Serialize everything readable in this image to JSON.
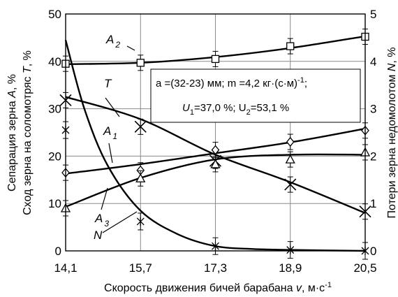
{
  "chart_data": {
    "type": "line",
    "x": [
      14.1,
      15.7,
      17.3,
      18.9,
      20.5
    ],
    "x_tick_labels": [
      "14,1",
      "15,7",
      "17,3",
      "18,9",
      "20,5"
    ],
    "xlabel": {
      "text": "Скорость движения бичей барабана ",
      "var": "v",
      "unit": ", м·с",
      "unit_sup": "-1"
    },
    "ylim_left": [
      0,
      50
    ],
    "ylim_right": [
      0,
      5
    ],
    "y_left_ticks": [
      "0",
      "10",
      "20",
      "30",
      "40",
      "50"
    ],
    "y_right_ticks": [
      "0",
      "1",
      "2",
      "3",
      "4",
      "5"
    ],
    "ylabel_left_line1": {
      "text": "Сепарация зерна ",
      "var": "A",
      "unit": ", %"
    },
    "ylabel_left_line2": {
      "text": "Сход зерна на соломотряс ",
      "var": "T",
      "unit": ", %"
    },
    "ylabel_right": {
      "text": "Потери зерна недомолотом ",
      "var": "N",
      "unit": ", %"
    },
    "annotation": {
      "line1": "a =(32-23) мм;  m =4,2 кг·(с·м)",
      "line1_sup": "-1",
      "line1_tail": ";",
      "line2_a": "U",
      "line2_a_sub": "1",
      "line2_b": "=37,0 %; U",
      "line2_b_sub": "2",
      "line2_c": "=53,1 %"
    },
    "series": [
      {
        "name": "A",
        "name_sub": "2",
        "axis": "left",
        "marker": "square",
        "points": [
          [
            14.1,
            39.5
          ],
          [
            15.7,
            39.7
          ],
          [
            17.3,
            40.5
          ],
          [
            18.9,
            43.2
          ],
          [
            20.5,
            45.2
          ]
        ],
        "curve": [
          [
            14.1,
            39.4
          ],
          [
            15.7,
            39.7
          ],
          [
            17.3,
            40.9
          ],
          [
            18.9,
            42.8
          ],
          [
            20.5,
            45.3
          ]
        ]
      },
      {
        "name": "T",
        "name_sub": "",
        "axis": "left",
        "marker": "x",
        "points": [
          [
            14.1,
            31.8
          ],
          [
            15.7,
            26.2
          ],
          [
            17.3,
            19.0
          ],
          [
            18.9,
            14.0
          ],
          [
            20.5,
            8.3
          ]
        ],
        "curve": [
          [
            14.1,
            32.5
          ],
          [
            15.7,
            27.8
          ],
          [
            17.3,
            20.3
          ],
          [
            18.9,
            14.5
          ],
          [
            20.5,
            8.0
          ]
        ]
      },
      {
        "name": "A",
        "name_sub": "1",
        "axis": "left",
        "marker": "diamond",
        "points": [
          [
            14.1,
            16.5
          ],
          [
            15.7,
            17.0
          ],
          [
            17.3,
            21.3
          ],
          [
            18.9,
            23.0
          ],
          [
            20.5,
            25.4
          ]
        ],
        "curve": [
          [
            14.1,
            16.3
          ],
          [
            15.7,
            18.3
          ],
          [
            17.3,
            20.6
          ],
          [
            18.9,
            22.9
          ],
          [
            20.5,
            25.8
          ]
        ]
      },
      {
        "name": "A",
        "name_sub": "3",
        "axis": "left",
        "marker": "triangle",
        "points": [
          [
            14.1,
            9.0
          ],
          [
            15.7,
            15.3
          ],
          [
            17.3,
            18.3
          ],
          [
            18.9,
            19.3
          ],
          [
            20.5,
            20.8
          ]
        ],
        "curve": [
          [
            14.1,
            9.3
          ],
          [
            15.7,
            15.4
          ],
          [
            17.3,
            19.3
          ],
          [
            18.9,
            20.3
          ],
          [
            20.5,
            20.3
          ]
        ]
      },
      {
        "name": "N",
        "name_sub": "",
        "axis": "right",
        "marker": "star",
        "points": [
          [
            14.1,
            2.55
          ],
          [
            15.7,
            0.62
          ],
          [
            17.3,
            0.1
          ],
          [
            18.9,
            0.02
          ],
          [
            20.5,
            0.0
          ]
        ],
        "curve": [
          [
            14.1,
            4.45
          ],
          [
            14.5,
            3.0
          ],
          [
            15.0,
            1.8
          ],
          [
            15.7,
            0.85
          ],
          [
            16.5,
            0.35
          ],
          [
            17.3,
            0.1
          ],
          [
            18.1,
            0.04
          ],
          [
            18.9,
            0.02
          ],
          [
            20.5,
            0.0
          ]
        ]
      }
    ],
    "error_bar_series": [
      "T",
      "A",
      "A",
      "A",
      "A"
    ],
    "grid": true,
    "legend": "inline curve labels"
  }
}
